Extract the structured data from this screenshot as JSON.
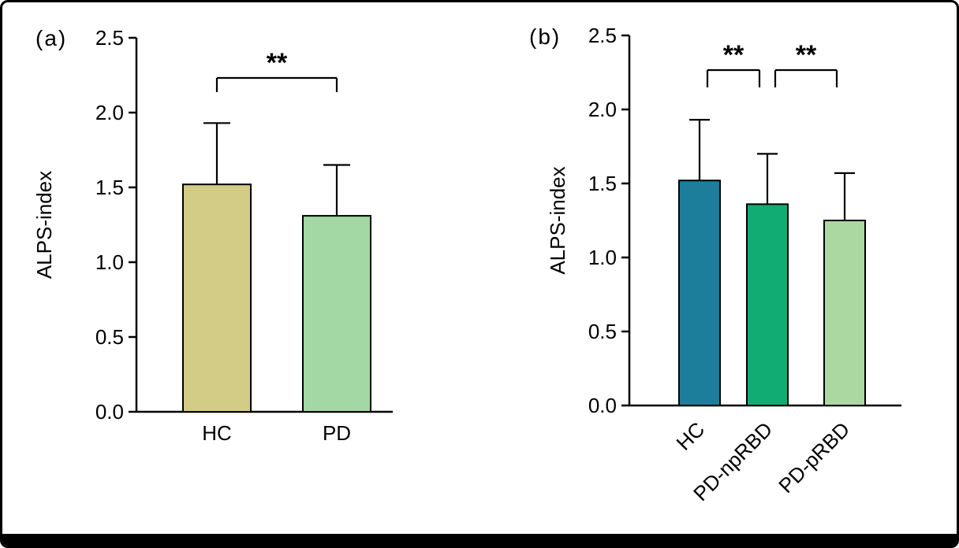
{
  "figure": {
    "background": "#ffffff",
    "border_color": "#000000",
    "panels": [
      {
        "label": "(a)"
      },
      {
        "label": "(b)"
      }
    ]
  },
  "chart_data": [
    {
      "type": "bar",
      "panel": "a",
      "title": "",
      "xlabel": "",
      "ylabel": "ALPS-index",
      "ylim": [
        0.0,
        2.5
      ],
      "yticks": [
        "0.0",
        "0.5",
        "1.0",
        "1.5",
        "2.0",
        "2.5"
      ],
      "grid": false,
      "legend": "none",
      "categories": [
        "HC",
        "PD"
      ],
      "values": [
        1.52,
        1.31
      ],
      "error_up": [
        0.41,
        0.34
      ],
      "bar_colors": [
        "#d2cc87",
        "#a3d7a3"
      ],
      "bar_edge_color": "#000000",
      "x_label_rotation": 0,
      "significance": [
        {
          "between": [
            "HC",
            "PD"
          ],
          "label": "**"
        }
      ]
    },
    {
      "type": "bar",
      "panel": "b",
      "title": "",
      "xlabel": "",
      "ylabel": "ALPS-index",
      "ylim": [
        0.0,
        2.5
      ],
      "yticks": [
        "0.0",
        "0.5",
        "1.0",
        "1.5",
        "2.0",
        "2.5"
      ],
      "grid": false,
      "legend": "none",
      "categories": [
        "HC",
        "PD-npRBD",
        "PD-pRBD"
      ],
      "values": [
        1.52,
        1.36,
        1.25
      ],
      "error_up": [
        0.41,
        0.34,
        0.32
      ],
      "bar_colors": [
        "#1d7e9c",
        "#10ac74",
        "#abd8a1"
      ],
      "bar_edge_color": "#000000",
      "x_label_rotation": 45,
      "significance": [
        {
          "between": [
            "HC",
            "PD-npRBD"
          ],
          "label": "**"
        },
        {
          "between": [
            "PD-npRBD",
            "PD-pRBD"
          ],
          "label": "**"
        }
      ]
    }
  ]
}
